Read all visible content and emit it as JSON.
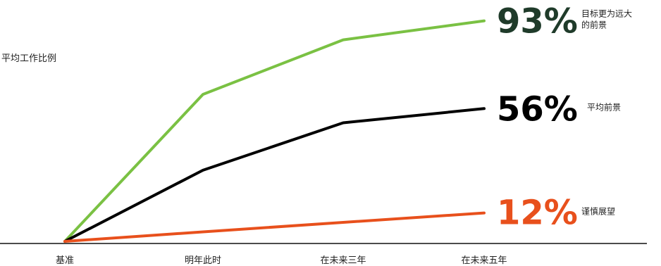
{
  "chart_data": {
    "type": "line",
    "title": "",
    "xlabel": "",
    "ylabel": "平均工作比例",
    "categories": [
      "基准",
      "明年此时",
      "在未来三年",
      "在未来五年"
    ],
    "ylim": [
      0,
      100
    ],
    "grid": false,
    "legend": "none",
    "series": [
      {
        "values": [
          0,
          62,
          85,
          93
        ],
        "color": "#7ac143",
        "end_label": "93%",
        "end_label_color": "#1f3b2a",
        "description": [
          "目标更为远大",
          "的前景"
        ]
      },
      {
        "values": [
          0,
          30,
          50,
          56
        ],
        "color": "#000000",
        "end_label": "56%",
        "end_label_color": "#000000",
        "description": [
          "平均前景"
        ]
      },
      {
        "values": [
          0,
          4,
          8,
          12
        ],
        "color": "#e8501c",
        "end_label": "12%",
        "end_label_color": "#e8501c",
        "description": [
          "谨慎展望"
        ]
      }
    ]
  }
}
